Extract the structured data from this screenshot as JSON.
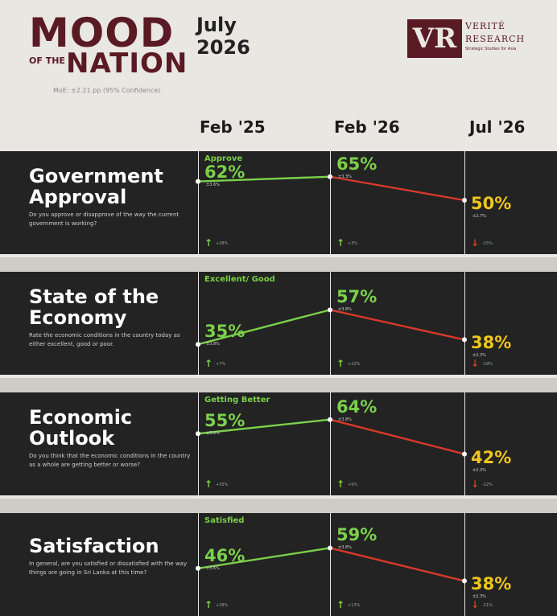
{
  "header": {
    "title_mood": "MOOD",
    "title_of_the": "OF THE",
    "title_nation": "NATION",
    "month": "July",
    "year": "2026",
    "moe_note": "MoE: ±2.21 pp (95% Confidence)",
    "logo": {
      "mark": "VR",
      "line1": "VERITÉ",
      "line2": "RESEARCH",
      "tagline": "Strategic Studies for Asia"
    }
  },
  "columns": [
    "Feb '25",
    "Feb '26",
    "Jul '26"
  ],
  "colors": {
    "rising": "#7bd04a",
    "falling": "#d8392b",
    "latest": "#f0c51c",
    "panel": "#222322",
    "brand": "#5a1a24"
  },
  "panels": [
    {
      "title": "Government Approval",
      "question": "Do you approve or disapprove of the way the current government is working?",
      "measure": "Approve",
      "values": [
        "62%",
        "65%",
        "50%"
      ],
      "moe": [
        "±3.6%",
        "±3.3%",
        "±2.7%"
      ],
      "changes": [
        "+38%",
        "+3%",
        "-15%"
      ]
    },
    {
      "title": "State of the Economy",
      "question": "Rate the economic conditions in the country today as either excellent, good or poor.",
      "measure": "Excellent/ Good",
      "values": [
        "35%",
        "57%",
        "38%"
      ],
      "moe": [
        "±3.8%",
        "±3.8%",
        "±2.3%"
      ],
      "changes": [
        "+7%",
        "+22%",
        "-19%"
      ]
    },
    {
      "title": "Economic Outlook",
      "question": "Do you think that the economic conditions in the country as a whole are getting better or worse?",
      "measure": "Getting Better",
      "values": [
        "55%",
        "64%",
        "42%"
      ],
      "moe": [
        "±3.6%",
        "±3.8%",
        "±2.3%"
      ],
      "changes": [
        "+35%",
        "+9%",
        "-22%"
      ]
    },
    {
      "title": "Satisfaction",
      "question": "In general, are you satisfied or dissatisfied with the way things are going in Sri Lanka at this time?",
      "measure": "Satisfied",
      "values": [
        "46%",
        "59%",
        "38%"
      ],
      "moe": [
        "±3.6%",
        "±3.8%",
        "±2.3%"
      ],
      "changes": [
        "+38%",
        "+13%",
        "-21%"
      ]
    }
  ],
  "chart_data": {
    "type": "line",
    "categories": [
      "Feb '25",
      "Feb '26",
      "Jul '26"
    ],
    "unit": "%",
    "series": [
      {
        "name": "Government Approval",
        "values": [
          62,
          65,
          50
        ]
      },
      {
        "name": "State of the Economy",
        "values": [
          35,
          57,
          38
        ]
      },
      {
        "name": "Economic Outlook",
        "values": [
          55,
          64,
          42
        ]
      },
      {
        "name": "Satisfaction",
        "values": [
          46,
          59,
          38
        ]
      }
    ]
  }
}
